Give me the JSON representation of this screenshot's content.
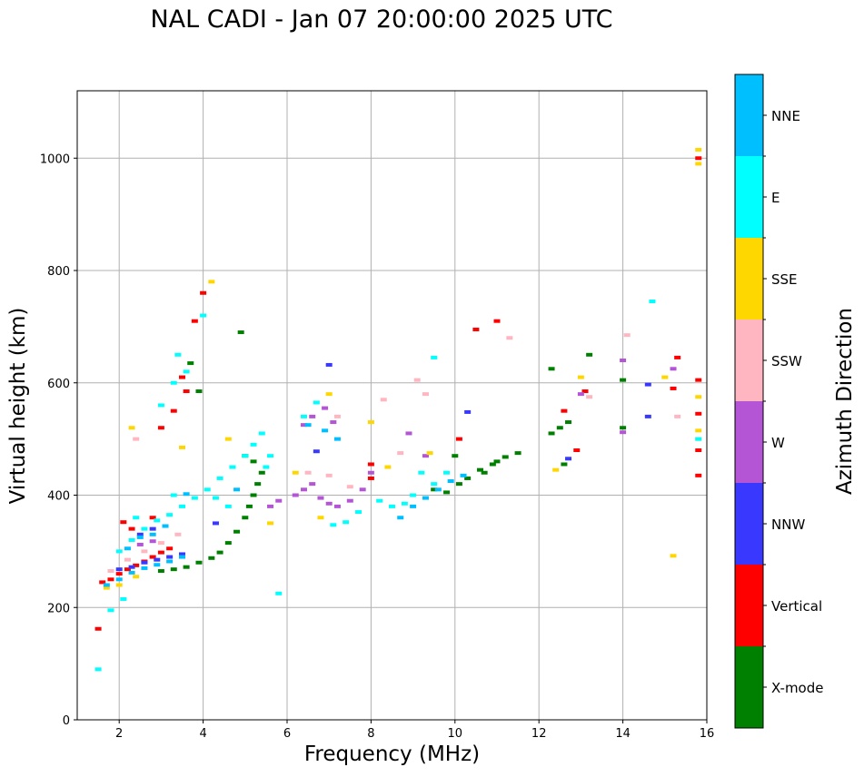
{
  "title": "NAL CADI - Jan 07 20:00:00 2025 UTC",
  "chart_data": {
    "type": "scatter",
    "title": "NAL CADI - Jan 07 20:00:00 2025 UTC",
    "xlabel": "Frequency (MHz)",
    "ylabel": "Virtual height (km)",
    "xlim": [
      1,
      16
    ],
    "ylim": [
      0,
      1120
    ],
    "xticks": [
      2,
      4,
      6,
      8,
      10,
      12,
      14,
      16
    ],
    "yticks": [
      0,
      200,
      400,
      600,
      800,
      1000
    ],
    "grid": true,
    "colorbar": {
      "label": "Azimuth Direction",
      "categories": [
        "X-mode",
        "Vertical",
        "NNW",
        "W",
        "SSW",
        "SSE",
        "E",
        "NNE"
      ],
      "colors": [
        "#008000",
        "#ff0000",
        "#3838ff",
        "#b455d6",
        "#ffb6c1",
        "#ffd700",
        "#00ffff",
        "#00bfff"
      ]
    },
    "series": [
      {
        "name": "X-mode",
        "color": "#008000",
        "points": [
          [
            3.0,
            265
          ],
          [
            3.3,
            268
          ],
          [
            3.6,
            272
          ],
          [
            3.9,
            280
          ],
          [
            4.2,
            288
          ],
          [
            4.4,
            298
          ],
          [
            4.6,
            315
          ],
          [
            4.8,
            335
          ],
          [
            5.0,
            360
          ],
          [
            5.1,
            380
          ],
          [
            5.2,
            400
          ],
          [
            5.3,
            420
          ],
          [
            5.4,
            440
          ],
          [
            5.2,
            460
          ],
          [
            5.0,
            470
          ],
          [
            4.9,
            690
          ],
          [
            3.9,
            585
          ],
          [
            3.7,
            635
          ],
          [
            10.1,
            420
          ],
          [
            10.3,
            430
          ],
          [
            10.6,
            445
          ],
          [
            10.9,
            455
          ],
          [
            11.2,
            468
          ],
          [
            11.5,
            475
          ],
          [
            10.7,
            440
          ],
          [
            11.0,
            460
          ],
          [
            12.3,
            510
          ],
          [
            12.5,
            520
          ],
          [
            12.7,
            530
          ],
          [
            12.3,
            625
          ],
          [
            12.6,
            455
          ],
          [
            13.2,
            650
          ],
          [
            14.0,
            605
          ],
          [
            14.0,
            520
          ],
          [
            9.5,
            410
          ],
          [
            9.8,
            405
          ],
          [
            10.0,
            470
          ]
        ]
      },
      {
        "name": "Vertical",
        "color": "#ff0000",
        "points": [
          [
            1.6,
            245
          ],
          [
            1.8,
            250
          ],
          [
            2.0,
            260
          ],
          [
            2.2,
            268
          ],
          [
            2.4,
            275
          ],
          [
            2.6,
            282
          ],
          [
            2.8,
            290
          ],
          [
            3.0,
            298
          ],
          [
            3.2,
            305
          ],
          [
            2.1,
            352
          ],
          [
            2.3,
            340
          ],
          [
            3.0,
            520
          ],
          [
            3.3,
            550
          ],
          [
            3.6,
            585
          ],
          [
            3.8,
            710
          ],
          [
            4.0,
            760
          ],
          [
            3.5,
            610
          ],
          [
            8.0,
            430
          ],
          [
            8.0,
            455
          ],
          [
            10.1,
            500
          ],
          [
            10.5,
            695
          ],
          [
            11.0,
            710
          ],
          [
            12.6,
            550
          ],
          [
            12.9,
            480
          ],
          [
            13.1,
            585
          ],
          [
            15.3,
            645
          ],
          [
            15.8,
            605
          ],
          [
            15.8,
            545
          ],
          [
            15.8,
            480
          ],
          [
            15.8,
            435
          ],
          [
            15.8,
            1000
          ],
          [
            15.2,
            590
          ],
          [
            2.8,
            360
          ],
          [
            1.5,
            162
          ]
        ]
      },
      {
        "name": "NNW",
        "color": "#3838ff",
        "points": [
          [
            2.0,
            268
          ],
          [
            2.3,
            272
          ],
          [
            2.6,
            280
          ],
          [
            2.9,
            285
          ],
          [
            3.2,
            290
          ],
          [
            3.5,
            295
          ],
          [
            2.5,
            330
          ],
          [
            2.8,
            340
          ],
          [
            4.3,
            350
          ],
          [
            6.7,
            478
          ],
          [
            7.0,
            632
          ],
          [
            10.3,
            548
          ],
          [
            12.7,
            465
          ],
          [
            14.6,
            540
          ],
          [
            14.6,
            597
          ]
        ]
      },
      {
        "name": "W",
        "color": "#b455d6",
        "points": [
          [
            5.6,
            380
          ],
          [
            5.8,
            390
          ],
          [
            6.2,
            400
          ],
          [
            6.4,
            410
          ],
          [
            6.6,
            420
          ],
          [
            6.8,
            395
          ],
          [
            7.0,
            385
          ],
          [
            7.2,
            380
          ],
          [
            7.5,
            390
          ],
          [
            7.8,
            410
          ],
          [
            6.4,
            525
          ],
          [
            6.6,
            540
          ],
          [
            6.9,
            555
          ],
          [
            7.1,
            530
          ],
          [
            8.0,
            440
          ],
          [
            13.0,
            580
          ],
          [
            14.0,
            640
          ],
          [
            14.0,
            512
          ],
          [
            15.2,
            625
          ],
          [
            8.9,
            510
          ],
          [
            9.3,
            470
          ],
          [
            2.5,
            312
          ],
          [
            2.8,
            318
          ]
        ]
      },
      {
        "name": "SSW",
        "color": "#ffb6c1",
        "points": [
          [
            1.8,
            265
          ],
          [
            2.2,
            285
          ],
          [
            2.6,
            300
          ],
          [
            3.0,
            315
          ],
          [
            3.4,
            330
          ],
          [
            7.0,
            435
          ],
          [
            7.5,
            415
          ],
          [
            9.1,
            605
          ],
          [
            9.3,
            580
          ],
          [
            8.7,
            475
          ],
          [
            2.4,
            500
          ],
          [
            6.5,
            440
          ],
          [
            7.2,
            540
          ],
          [
            8.3,
            570
          ],
          [
            13.2,
            575
          ],
          [
            14.1,
            685
          ],
          [
            15.3,
            540
          ],
          [
            11.3,
            680
          ]
        ]
      },
      {
        "name": "SSE",
        "color": "#ffd700",
        "points": [
          [
            1.7,
            235
          ],
          [
            2.0,
            240
          ],
          [
            2.4,
            255
          ],
          [
            3.5,
            485
          ],
          [
            4.2,
            780
          ],
          [
            4.6,
            500
          ],
          [
            5.6,
            350
          ],
          [
            6.2,
            440
          ],
          [
            6.8,
            360
          ],
          [
            7.0,
            580
          ],
          [
            8.0,
            530
          ],
          [
            8.4,
            450
          ],
          [
            9.4,
            475
          ],
          [
            12.4,
            445
          ],
          [
            13.0,
            610
          ],
          [
            15.0,
            610
          ],
          [
            15.2,
            292
          ],
          [
            15.8,
            500
          ],
          [
            15.8,
            515
          ],
          [
            15.8,
            575
          ],
          [
            15.8,
            1015
          ],
          [
            15.8,
            990
          ],
          [
            2.3,
            520
          ]
        ]
      },
      {
        "name": "E",
        "color": "#00ffff",
        "points": [
          [
            2.0,
            300
          ],
          [
            2.3,
            320
          ],
          [
            2.6,
            340
          ],
          [
            2.9,
            355
          ],
          [
            3.2,
            365
          ],
          [
            3.5,
            380
          ],
          [
            3.8,
            395
          ],
          [
            4.1,
            410
          ],
          [
            4.4,
            430
          ],
          [
            4.7,
            450
          ],
          [
            5.0,
            470
          ],
          [
            5.2,
            490
          ],
          [
            5.4,
            510
          ],
          [
            3.0,
            560
          ],
          [
            3.3,
            600
          ],
          [
            3.6,
            620
          ],
          [
            3.4,
            650
          ],
          [
            4.0,
            720
          ],
          [
            8.5,
            380
          ],
          [
            8.8,
            385
          ],
          [
            9.0,
            400
          ],
          [
            9.2,
            440
          ],
          [
            9.5,
            420
          ],
          [
            9.8,
            440
          ],
          [
            8.2,
            390
          ],
          [
            7.7,
            370
          ],
          [
            7.4,
            352
          ],
          [
            7.1,
            347
          ],
          [
            6.4,
            540
          ],
          [
            6.7,
            565
          ],
          [
            5.5,
            450
          ],
          [
            5.6,
            470
          ],
          [
            4.6,
            380
          ],
          [
            4.3,
            395
          ],
          [
            9.5,
            645
          ],
          [
            14.7,
            745
          ],
          [
            15.8,
            500
          ],
          [
            1.5,
            90
          ],
          [
            1.8,
            195
          ],
          [
            2.1,
            215
          ],
          [
            5.8,
            225
          ],
          [
            2.4,
            360
          ],
          [
            3.3,
            400
          ]
        ]
      },
      {
        "name": "NNE",
        "color": "#00bfff",
        "points": [
          [
            1.7,
            240
          ],
          [
            2.0,
            250
          ],
          [
            2.3,
            262
          ],
          [
            2.6,
            270
          ],
          [
            2.9,
            276
          ],
          [
            3.2,
            282
          ],
          [
            3.5,
            290
          ],
          [
            2.5,
            325
          ],
          [
            2.8,
            330
          ],
          [
            3.1,
            345
          ],
          [
            8.7,
            360
          ],
          [
            9.0,
            380
          ],
          [
            9.3,
            395
          ],
          [
            9.6,
            410
          ],
          [
            9.9,
            425
          ],
          [
            10.2,
            435
          ],
          [
            6.5,
            525
          ],
          [
            6.9,
            515
          ],
          [
            7.2,
            500
          ],
          [
            2.2,
            305
          ],
          [
            3.6,
            402
          ],
          [
            4.8,
            410
          ]
        ]
      }
    ]
  }
}
